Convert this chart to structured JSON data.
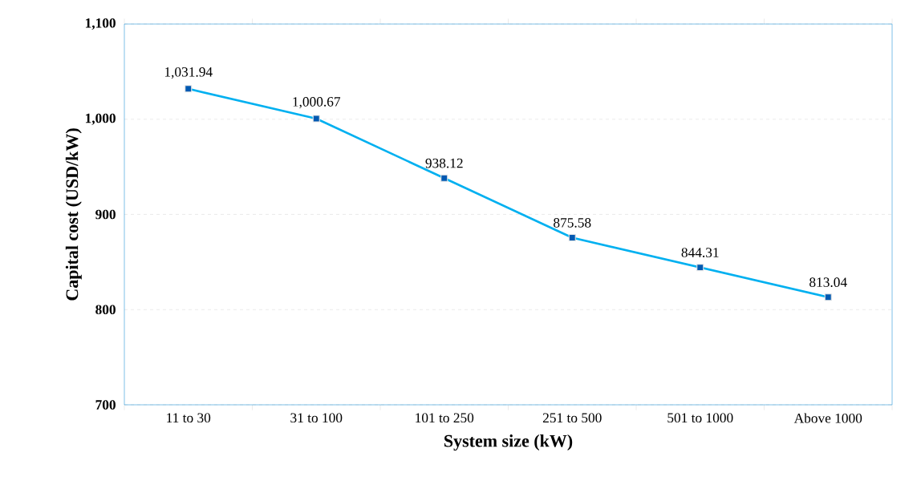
{
  "chart_data": {
    "type": "line",
    "xlabel": "System size (kW)",
    "ylabel": "Capital cost  (USD/kW)",
    "categories": [
      "11 to 30",
      "31 to 100",
      "101 to 250",
      "251 to 500",
      "501 to 1000",
      "Above 1000"
    ],
    "series": [
      {
        "color": "#00b0f0",
        "values": [
          1031.94,
          1000.67,
          938.12,
          875.58,
          844.31,
          813.04
        ],
        "value_labels": [
          "1,031.94",
          "1,000.67",
          "938.12",
          "875.58",
          "844.31",
          "813.04"
        ]
      }
    ],
    "ylim": [
      700,
      1100
    ],
    "yticks": [
      700,
      800,
      900,
      {
        "value": 1000,
        "label": "1,000"
      },
      {
        "value": 1100,
        "label": "1,100"
      }
    ],
    "grid": "y",
    "marker": "square",
    "line_style": "solid"
  }
}
